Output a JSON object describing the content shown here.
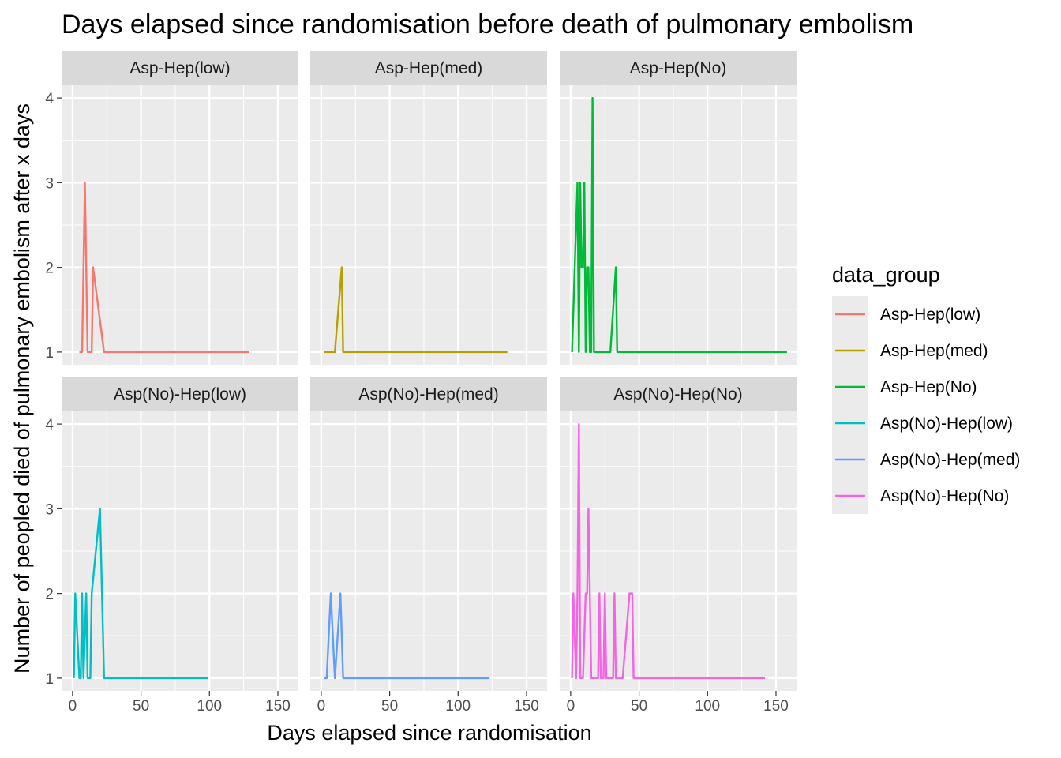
{
  "chart_data": {
    "type": "line",
    "title": "Days elapsed since randomisation before death of pulmonary embolism",
    "xlabel": "Days elapsed since randomisation",
    "ylabel": "Number of peopled died of pulmonary embolism after x days",
    "xlim": [
      -8,
      165
    ],
    "ylim": [
      0.85,
      4.15
    ],
    "x_ticks": [
      0,
      50,
      100,
      150
    ],
    "x_tick_labels": [
      "0",
      "50",
      "100",
      "150"
    ],
    "y_ticks": [
      1,
      2,
      3,
      4
    ],
    "y_tick_labels": [
      "1",
      "2",
      "3",
      "4"
    ],
    "grid": true,
    "legend": {
      "title": "data_group",
      "position": "right",
      "entries": [
        "Asp-Hep(low)",
        "Asp-Hep(med)",
        "Asp-Hep(No)",
        "Asp(No)-Hep(low)",
        "Asp(No)-Hep(med)",
        "Asp(No)-Hep(No)"
      ]
    },
    "colors": {
      "panel_bg": "#ebebeb",
      "strip_bg": "#d9d9d9",
      "grid": "#ffffff"
    },
    "series": [
      {
        "name": "Asp-Hep(low)",
        "color": "#f8766d",
        "x": [
          5,
          7,
          9,
          11,
          14,
          15,
          23,
          129
        ],
        "y": [
          1,
          1,
          3,
          1,
          1,
          2,
          1,
          1
        ]
      },
      {
        "name": "Asp-Hep(med)",
        "color": "#b79f00",
        "x": [
          2,
          10,
          15,
          16,
          136
        ],
        "y": [
          1,
          1,
          2,
          1,
          1
        ]
      },
      {
        "name": "Asp-Hep(No)",
        "color": "#00ba38",
        "x": [
          1,
          5,
          6,
          7,
          8,
          9,
          10,
          11,
          12,
          13,
          14,
          15,
          16,
          17,
          18,
          19,
          20,
          29,
          33,
          34,
          158
        ],
        "y": [
          1,
          3,
          1,
          3,
          2,
          2,
          3,
          1,
          2,
          2,
          1,
          1,
          4,
          1,
          1,
          1,
          1,
          1,
          2,
          1,
          1
        ]
      },
      {
        "name": "Asp(No)-Hep(low)",
        "color": "#00bfc4",
        "x": [
          1,
          2,
          5,
          6,
          7,
          8,
          10,
          11,
          13,
          14,
          20,
          23,
          99
        ],
        "y": [
          1,
          2,
          1,
          1,
          2,
          1,
          2,
          1,
          1,
          2,
          3,
          1,
          1
        ]
      },
      {
        "name": "Asp(No)-Hep(med)",
        "color": "#619cff",
        "x": [
          2,
          4,
          7,
          10,
          14,
          16,
          123
        ],
        "y": [
          1,
          1,
          2,
          1,
          2,
          1,
          1
        ]
      },
      {
        "name": "Asp(No)-Hep(No)",
        "color": "#f564e3",
        "x": [
          1,
          2,
          4,
          5,
          6,
          7,
          8,
          9,
          11,
          12,
          13,
          14,
          15,
          19,
          20,
          21,
          22,
          24,
          25,
          26,
          28,
          30,
          31,
          32,
          33,
          35,
          38,
          43,
          45,
          46,
          142
        ],
        "y": [
          1,
          2,
          1,
          2,
          4,
          1,
          1,
          1,
          2,
          2,
          3,
          2,
          1,
          1,
          1,
          2,
          1,
          1,
          2,
          1,
          1,
          1,
          1,
          2,
          1,
          1,
          1,
          2,
          2,
          1,
          1
        ]
      }
    ]
  }
}
